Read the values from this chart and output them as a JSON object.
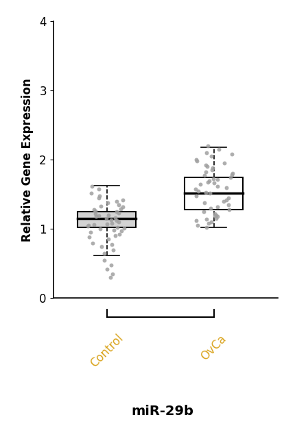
{
  "title": "miR-29b",
  "ylabel": "Relative Gene Expression",
  "categories": [
    "Control",
    "OvCa"
  ],
  "tick_color": "#DAA520",
  "background_color": "#ffffff",
  "ylim": [
    0,
    4
  ],
  "yticks": [
    0,
    1,
    2,
    3,
    4
  ],
  "control": {
    "median": 1.15,
    "q1": 1.02,
    "q3": 1.25,
    "whisker_low": 0.62,
    "whisker_high": 1.63,
    "box_facecolor": "#d3d3d3",
    "points": [
      1.02,
      1.05,
      1.08,
      1.12,
      1.15,
      1.18,
      1.22,
      1.25,
      1.28,
      0.95,
      0.98,
      1.01,
      1.04,
      1.07,
      1.1,
      1.13,
      1.16,
      1.19,
      1.32,
      0.9,
      0.85,
      0.8,
      0.75,
      0.7,
      0.65,
      0.55,
      0.48,
      0.42,
      0.35,
      0.3,
      1.35,
      1.38,
      1.42,
      1.48,
      1.52,
      1.58,
      1.62,
      0.92,
      0.88,
      0.78,
      1.2,
      1.23,
      1.26,
      1.29,
      1.33,
      1.4,
      1.45,
      0.97,
      1.0,
      1.06
    ]
  },
  "ovca": {
    "median": 1.52,
    "q1": 1.28,
    "q3": 1.75,
    "whisker_low": 1.02,
    "whisker_high": 2.18,
    "box_facecolor": "#ffffff",
    "points": [
      1.52,
      1.55,
      1.6,
      1.65,
      1.7,
      1.75,
      1.8,
      1.85,
      1.42,
      1.38,
      1.32,
      1.28,
      1.22,
      1.18,
      1.12,
      1.08,
      1.05,
      1.02,
      1.9,
      1.95,
      2.0,
      2.05,
      2.1,
      2.15,
      2.2,
      1.48,
      1.45,
      1.4,
      1.35,
      1.3,
      1.62,
      1.67,
      1.72,
      1.77,
      1.82,
      1.58,
      1.53,
      1.25,
      1.2,
      1.15,
      1.88,
      1.92,
      1.98,
      2.08,
      1.68,
      1.73,
      1.78,
      1.1,
      1.14,
      1.19
    ]
  }
}
